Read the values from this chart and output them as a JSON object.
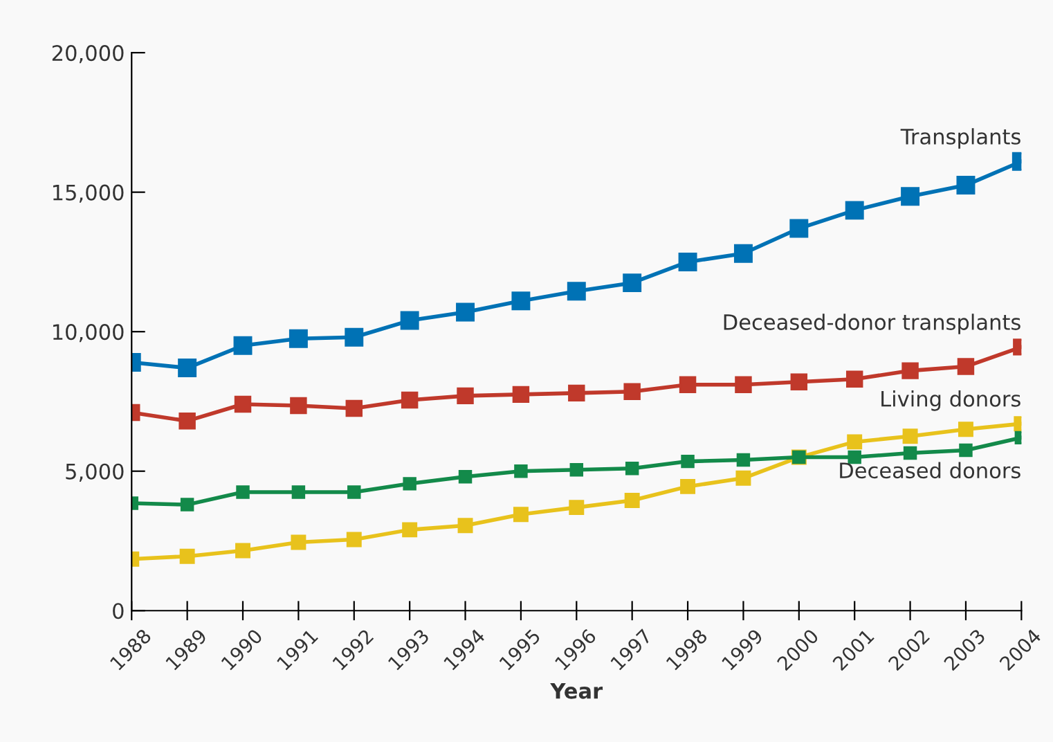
{
  "chart_data": {
    "type": "line",
    "xlabel": "Year",
    "categories": [
      "1988",
      "1989",
      "1990",
      "1991",
      "1992",
      "1993",
      "1994",
      "1995",
      "1996",
      "1997",
      "1998",
      "1999",
      "2000",
      "2001",
      "2002",
      "2003",
      "2004"
    ],
    "series": [
      {
        "name": "Transplants",
        "color": "#0072b5",
        "values": [
          8900,
          8700,
          9500,
          9750,
          9800,
          10400,
          10700,
          11100,
          11450,
          11750,
          12500,
          12800,
          13700,
          14350,
          14850,
          15250,
          16100
        ]
      },
      {
        "name": "Deceased-donor transplants",
        "color": "#c0392b",
        "values": [
          7100,
          6800,
          7400,
          7350,
          7250,
          7550,
          7700,
          7750,
          7800,
          7850,
          8100,
          8100,
          8200,
          8300,
          8600,
          8750,
          9450
        ]
      },
      {
        "name": "Living donors",
        "color": "#e8c21c",
        "values": [
          1850,
          1950,
          2150,
          2450,
          2550,
          2900,
          3050,
          3450,
          3700,
          3950,
          4450,
          4750,
          5500,
          6050,
          6250,
          6500,
          6700
        ]
      },
      {
        "name": "Deceased donors",
        "color": "#138a4a",
        "values": [
          3850,
          3800,
          4250,
          4250,
          4250,
          4550,
          4800,
          5000,
          5050,
          5100,
          5350,
          5400,
          5500,
          5500,
          5650,
          5750,
          6200
        ]
      }
    ],
    "ylim": [
      0,
      20000
    ],
    "yticks": [
      0,
      {
        "value": 5000,
        "label": "5,000"
      },
      {
        "value": 10000,
        "label": "10,000"
      },
      {
        "value": 15000,
        "label": "15,000"
      },
      {
        "value": 20000,
        "label": "20,000"
      }
    ],
    "grid": false,
    "legend": false,
    "marker": "square",
    "line_style": "solid"
  }
}
